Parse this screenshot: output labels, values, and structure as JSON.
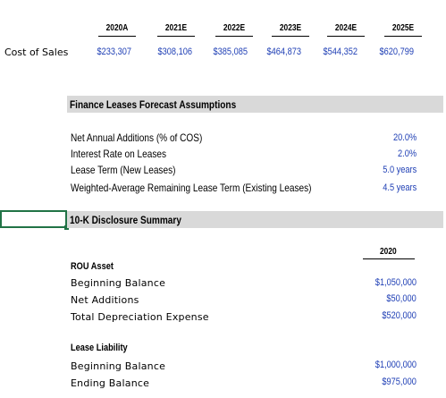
{
  "years": [
    "2020A",
    "2021E",
    "2022E",
    "2023E",
    "2024E",
    "2025E"
  ],
  "cost_of_sales": {
    "label": "Cost of Sales",
    "values": [
      "$233,307",
      "$308,106",
      "$385,085",
      "$464,873",
      "$544,352",
      "$620,799"
    ]
  },
  "finance_leases": {
    "title": "Finance Leases Forecast Assumptions",
    "rows": [
      {
        "label": "Net Annual Additions (% of COS)",
        "value": "20.0%"
      },
      {
        "label": "Interest Rate on Leases",
        "value": "2.0%"
      },
      {
        "label": "Lease Term (New Leases)",
        "value": "5.0 years"
      },
      {
        "label": "Weighted-Average Remaining Lease Term (Existing Leases)",
        "value": "4.5 years"
      }
    ]
  },
  "disclosure": {
    "title": "10-K Disclosure Summary",
    "year": "2020",
    "rou": {
      "heading": "ROU Asset",
      "rows": [
        {
          "label": "Beginning Balance",
          "value": "$1,050,000"
        },
        {
          "label": "Net Additions",
          "value": "$50,000"
        },
        {
          "label": "Total Depreciation Expense",
          "value": "$520,000"
        }
      ]
    },
    "lease_liability": {
      "heading": "Lease Liability",
      "rows": [
        {
          "label": "Beginning Balance",
          "value": "$1,000,000"
        },
        {
          "label": "Ending Balance",
          "value": "$975,000"
        }
      ]
    }
  }
}
